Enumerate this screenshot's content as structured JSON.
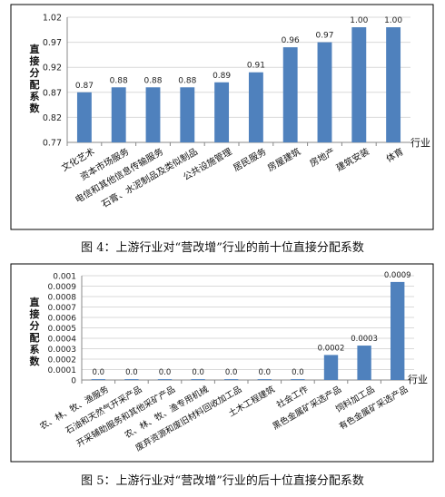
{
  "charts": [
    {
      "type": "bar",
      "ylabel": "直接分配系数",
      "xlabel": "行业",
      "y_min": 0.77,
      "y_max": 1.02,
      "y_step": 0.05,
      "ticks": [
        "0.77",
        "0.82",
        "0.87",
        "0.92",
        "0.97",
        "1.02"
      ],
      "categories": [
        "文化艺术",
        "资本市场服务",
        "电信和其他信息传输服务",
        "石膏、水泥制品及类似制品",
        "公共设施管理",
        "居民服务",
        "房屋建筑",
        "房地产",
        "建筑安装",
        "体育"
      ],
      "values": [
        0.87,
        0.88,
        0.88,
        0.88,
        0.89,
        0.91,
        0.96,
        0.97,
        1.0,
        1.0
      ],
      "labels": [
        "0.87",
        "0.88",
        "0.88",
        "0.88",
        "0.89",
        "0.91",
        "0.96",
        "0.97",
        "1.00",
        "1.00"
      ],
      "bar_color": "#4f81bd",
      "caption": "图 4：上游行业对“营改增”行业的前十位直接分配系数"
    },
    {
      "type": "bar",
      "ylabel": "直接分配系数",
      "xlabel": "行业",
      "y_min": 0,
      "y_max": 0.001,
      "y_step": 0.0001,
      "ticks": [
        "0",
        "0.0001",
        "0.0002",
        "0.0003",
        "0.0004",
        "0.0005",
        "0.0006",
        "0.0007",
        "0.0008",
        "0.0009",
        "0.001"
      ],
      "categories": [
        "农、林、牧、渔服务",
        "石油和天然气开采产品",
        "开采辅助服务和其他采矿产品",
        "农、林、牧、渔专用机械",
        "废弃资源和废旧材料回收加工品",
        "土木工程建筑",
        "社会工作",
        "黑色金属矿采选产品",
        "饲料加工品",
        "有色金属矿采选产品"
      ],
      "values": [
        0.0,
        0.0,
        0.0,
        0.0,
        0.0,
        0.0,
        0.0,
        0.0002,
        0.0003,
        0.0009
      ],
      "display_values": [
        8e-06,
        8e-06,
        8e-06,
        8e-06,
        8e-06,
        8e-06,
        8e-06,
        0.00024,
        0.00033,
        0.00094
      ],
      "labels": [
        "0.0",
        "0.0",
        "0.0",
        "0.0",
        "0.0",
        "0.0",
        "0.0",
        "0.0002",
        "0.0003",
        "0.0009"
      ],
      "bar_color": "#4f81bd",
      "caption": "图 5：上游行业对“营改增”行业的后十位直接分配系数"
    }
  ]
}
